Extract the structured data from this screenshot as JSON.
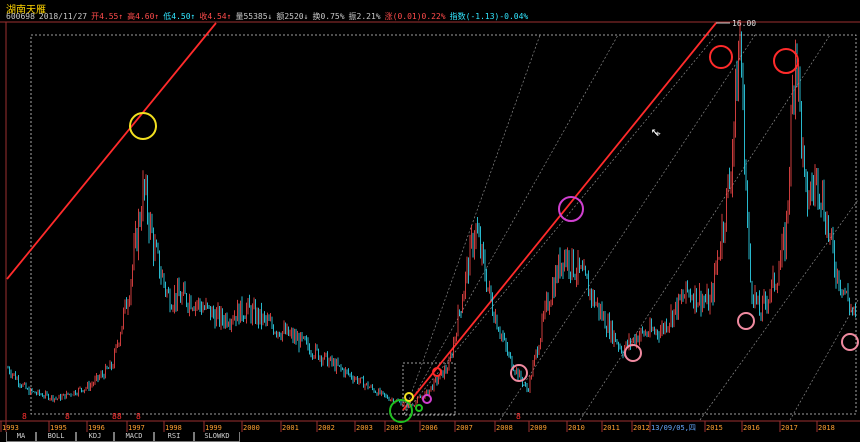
{
  "header": {
    "stock_name": "湖南天雁",
    "info": [
      {
        "text": "600698",
        "color": "gray"
      },
      {
        "text": "2018/11/27",
        "color": "gray"
      },
      {
        "text": "开4.55↑",
        "color": "red"
      },
      {
        "text": "高4.60↑",
        "color": "red"
      },
      {
        "text": "低4.50↑",
        "color": "cyan"
      },
      {
        "text": "收4.54↑",
        "color": "red"
      },
      {
        "text": "量55385↓",
        "color": "gray"
      },
      {
        "text": "额2520↓",
        "color": "gray"
      },
      {
        "text": "换0.75%",
        "color": "gray"
      },
      {
        "text": "振2.21%",
        "color": "gray"
      },
      {
        "text": "涨(0.01)0.22%",
        "color": "red"
      },
      {
        "text": "指数(-1.13)-0.04%",
        "color": "cyan"
      }
    ]
  },
  "chart_data": {
    "type": "candlestick",
    "price_label": "16.00",
    "x_axis_years": [
      "1993",
      "1995",
      "1996",
      "1997",
      "1998",
      "1999",
      "2000",
      "2001",
      "2002",
      "2003",
      "2005",
      "2006",
      "2007",
      "2008",
      "2009",
      "2010",
      "2011",
      "2012",
      "13/09/05,四",
      "2015",
      "2016",
      "2017",
      "2018"
    ],
    "price_path": [
      [
        1993,
        2.5
      ],
      [
        1993.6,
        1.6
      ],
      [
        1994.5,
        1.3
      ],
      [
        1995.5,
        1.8
      ],
      [
        1996.2,
        2.6
      ],
      [
        1996.7,
        5.5
      ],
      [
        1997.15,
        9.5
      ],
      [
        1997.5,
        7
      ],
      [
        1997.9,
        5.3
      ],
      [
        1998.6,
        5.2
      ],
      [
        1999.5,
        4.4
      ],
      [
        2000.3,
        4.8
      ],
      [
        2001,
        4.2
      ],
      [
        2002,
        3.5
      ],
      [
        2003,
        2.6
      ],
      [
        2004.5,
        1.4
      ],
      [
        2005.3,
        1.0
      ],
      [
        2005.8,
        1.5
      ],
      [
        2006.5,
        2.6
      ],
      [
        2007.3,
        8.0
      ],
      [
        2007.8,
        5.0
      ],
      [
        2008.3,
        3.0
      ],
      [
        2008.9,
        1.6
      ],
      [
        2009.5,
        5.0
      ],
      [
        2010,
        7.0
      ],
      [
        2010.6,
        6.0
      ],
      [
        2011.2,
        4.5
      ],
      [
        2011.8,
        3.2
      ],
      [
        2012.3,
        3.8
      ],
      [
        2013,
        4.0
      ],
      [
        2013.8,
        5.5
      ],
      [
        2014.5,
        5.0
      ],
      [
        2015.1,
        10.0
      ],
      [
        2015.4,
        15.5
      ],
      [
        2015.7,
        6.0
      ],
      [
        2016,
        4.6
      ],
      [
        2016.5,
        6.0
      ],
      [
        2016.8,
        7.5
      ],
      [
        2017.1,
        15.5
      ],
      [
        2017.4,
        9.0
      ],
      [
        2017.8,
        10.0
      ],
      [
        2018.3,
        6.5
      ],
      [
        2018.9,
        4.5
      ]
    ],
    "highlight_circles": [
      "yellow",
      "magenta",
      "red",
      "red",
      "pink",
      "pink",
      "pink",
      "pink"
    ]
  },
  "tabs": [
    "MA",
    "BOLL",
    "KDJ",
    "MACD",
    "RSI",
    "SLOWKD"
  ]
}
